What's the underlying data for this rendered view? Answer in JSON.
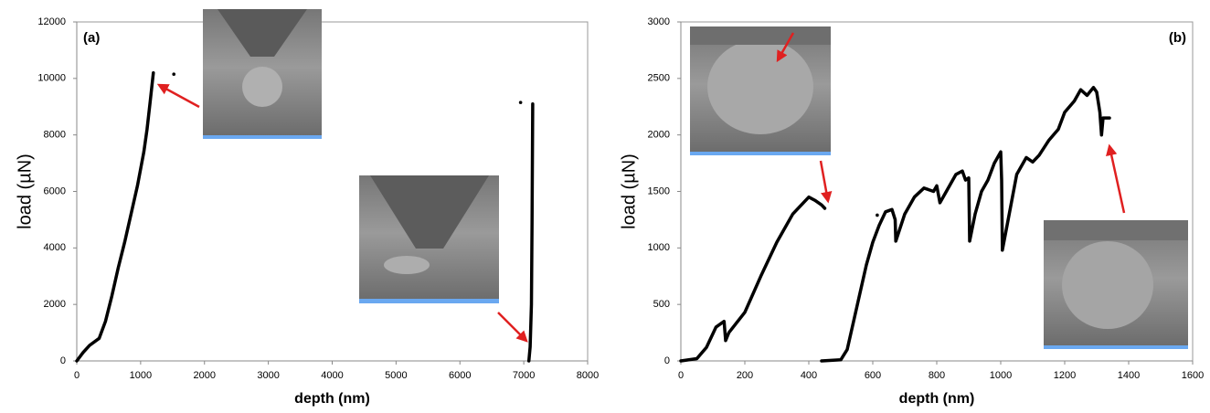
{
  "chart_data": [
    {
      "type": "line",
      "label": "(a)",
      "xlabel": "depth (nm)",
      "ylabel": "load (µN)",
      "xlim": [
        0,
        8000
      ],
      "xticks": [
        0,
        1000,
        2000,
        3000,
        4000,
        5000,
        6000,
        7000,
        8000
      ],
      "ylim": [
        0,
        12000
      ],
      "yticks": [
        0,
        2000,
        4000,
        6000,
        8000,
        10000,
        12000
      ],
      "series": [
        {
          "color": "#000000",
          "x": [
            0,
            100,
            200,
            350,
            450,
            550,
            650,
            750,
            850,
            950,
            1050,
            1100,
            1150,
            1200,
            null,
            1520,
            null,
            6950,
            null,
            7080,
            7100,
            7120,
            7130,
            7140
          ],
          "values": [
            0,
            300,
            550,
            800,
            1400,
            2300,
            3300,
            4200,
            5200,
            6200,
            7400,
            8200,
            9200,
            10200,
            null,
            10150,
            null,
            9150,
            null,
            0,
            500,
            2000,
            5000,
            9100
          ]
        }
      ]
    },
    {
      "type": "line",
      "label": "(b)",
      "xlabel": "depth (nm)",
      "ylabel": "load (µN)",
      "xlim": [
        0,
        1600
      ],
      "xticks": [
        0,
        200,
        400,
        600,
        800,
        1000,
        1200,
        1400,
        1600
      ],
      "ylim": [
        0,
        3000
      ],
      "yticks": [
        0,
        500,
        1000,
        1500,
        2000,
        2500,
        3000
      ],
      "series": [
        {
          "color": "#000000",
          "x": [
            0,
            50,
            80,
            110,
            135,
            140,
            150,
            200,
            250,
            300,
            350,
            400,
            420,
            440,
            450,
            null,
            440,
            470,
            500,
            520,
            540,
            560,
            580,
            600,
            620,
            640,
            660,
            670,
            672,
            700,
            730,
            760,
            790,
            800,
            810,
            830,
            860,
            880,
            890,
            900,
            903,
            920,
            940,
            960,
            980,
            1000,
            1003,
            1005,
            1030,
            1050,
            1080,
            1100,
            1120,
            1150,
            1180,
            1200,
            1230,
            1250,
            1270,
            1290,
            1300,
            1310,
            1315,
            1320,
            1340,
            null,
            614
          ],
          "values": [
            0,
            20,
            120,
            300,
            350,
            180,
            250,
            430,
            750,
            1050,
            1300,
            1450,
            1420,
            1380,
            1350,
            null,
            0,
            5,
            10,
            100,
            350,
            600,
            850,
            1050,
            1200,
            1320,
            1340,
            1250,
            1060,
            1300,
            1450,
            1530,
            1500,
            1550,
            1400,
            1500,
            1650,
            1680,
            1600,
            1620,
            1060,
            1300,
            1500,
            1600,
            1750,
            1850,
            1600,
            980,
            1350,
            1650,
            1800,
            1760,
            1820,
            1950,
            2050,
            2200,
            2300,
            2400,
            2350,
            2420,
            2380,
            2200,
            2000,
            2150,
            2150,
            null,
            1290
          ]
        }
      ]
    }
  ]
}
